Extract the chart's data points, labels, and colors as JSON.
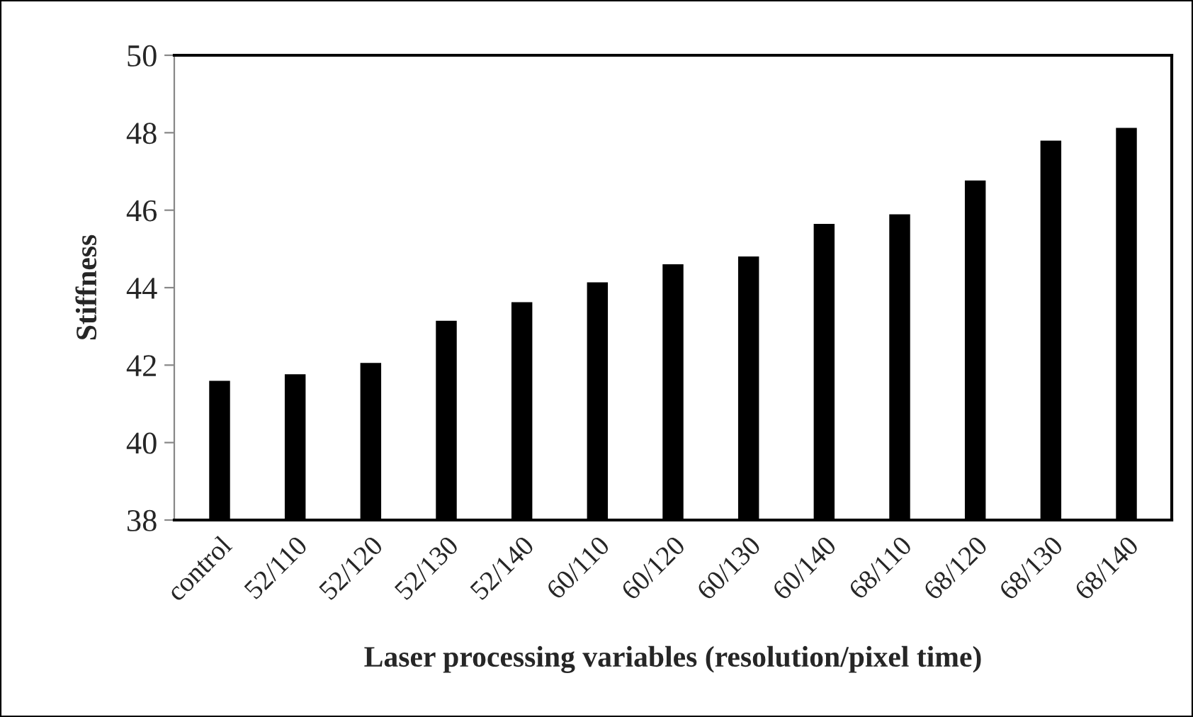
{
  "chart_data": {
    "type": "bar",
    "xlabel": "Laser processing variables (resolution/pixel time)",
    "ylabel": "Stiffness",
    "categories": [
      "control",
      "52/110",
      "52/120",
      "52/130",
      "52/140",
      "60/110",
      "60/120",
      "60/130",
      "60/140",
      "68/110",
      "68/120",
      "68/130",
      "68/140"
    ],
    "values": [
      41.57,
      41.74,
      42.03,
      43.12,
      43.6,
      44.11,
      44.58,
      44.78,
      45.62,
      45.87,
      46.74,
      47.77,
      48.1
    ],
    "color": "#000000",
    "ylim": [
      38,
      50
    ],
    "yticks": [
      38,
      40,
      42,
      44,
      46,
      48,
      50
    ],
    "grid": false,
    "legend": false
  }
}
